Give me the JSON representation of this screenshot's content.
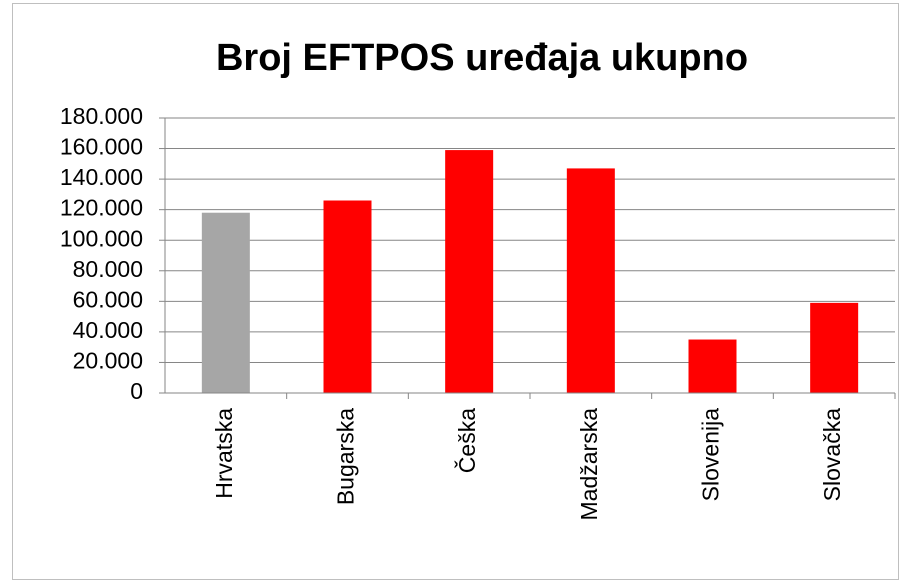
{
  "chart_data": {
    "type": "bar",
    "title": "Broj EFTPOS uređaja ukupno",
    "categories": [
      "Hrvatska",
      "Bugarska",
      "Češka",
      "Madžarska",
      "Slovenija",
      "Slovačka"
    ],
    "values": [
      118000,
      126000,
      159000,
      147000,
      35000,
      59000
    ],
    "colors": [
      "#a6a6a6",
      "#ff0000",
      "#ff0000",
      "#ff0000",
      "#ff0000",
      "#ff0000"
    ],
    "ylim": [
      0,
      180000
    ],
    "yticks": [
      0,
      {
        "value": 20000,
        "label": "20.000"
      },
      {
        "value": 40000,
        "label": "40.000"
      },
      {
        "value": 60000,
        "label": "60.000"
      },
      {
        "value": 80000,
        "label": "80.000"
      },
      {
        "value": 100000,
        "label": "100.000"
      },
      {
        "value": 120000,
        "label": "120.000"
      },
      {
        "value": 140000,
        "label": "140.000"
      },
      {
        "value": 160000,
        "label": "160.000"
      },
      {
        "value": 180000,
        "label": "180.000"
      }
    ],
    "grid": true
  }
}
